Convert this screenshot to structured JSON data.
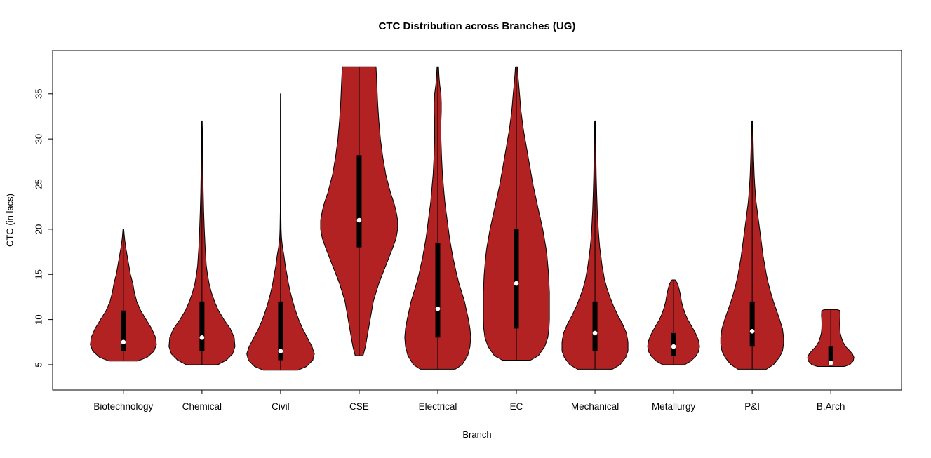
{
  "window": {
    "background": "#ffffff"
  },
  "chart_data": {
    "type": "violin",
    "title": "CTC Distribution across Branches (UG)",
    "xlabel": "Branch",
    "ylabel": "CTC (in lacs)",
    "ylim": [
      2.2,
      39.8
    ],
    "yticks": [
      5,
      10,
      15,
      20,
      25,
      30,
      35
    ],
    "grid": false,
    "legend": false,
    "violin_fill": "#b22222",
    "violin_stroke": "#000000",
    "box_color": "#000000",
    "median_dot_color": "#ffffff",
    "categories": [
      "Biotechnology",
      "Chemical",
      "Civil",
      "CSE",
      "Electrical",
      "EC",
      "Mechanical",
      "Metallurgy",
      "P&I",
      "B.Arch"
    ],
    "series": [
      {
        "name": "Biotechnology",
        "min": 5.4,
        "max": 20,
        "q1": 6.5,
        "q3": 11,
        "median": 7.5,
        "profile": [
          [
            5.4,
            0.18
          ],
          [
            5.8,
            0.3
          ],
          [
            6.5,
            0.39
          ],
          [
            7.2,
            0.42
          ],
          [
            8,
            0.41
          ],
          [
            9,
            0.36
          ],
          [
            10,
            0.29
          ],
          [
            11,
            0.22
          ],
          [
            12,
            0.17
          ],
          [
            13,
            0.14
          ],
          [
            14,
            0.12
          ],
          [
            15,
            0.09
          ],
          [
            16,
            0.07
          ],
          [
            17,
            0.05
          ],
          [
            18,
            0.03
          ],
          [
            19,
            0.015
          ],
          [
            20,
            0.005
          ]
        ]
      },
      {
        "name": "Chemical",
        "min": 5.0,
        "max": 32,
        "q1": 6.5,
        "q3": 12,
        "median": 8,
        "profile": [
          [
            5.0,
            0.2
          ],
          [
            5.5,
            0.31
          ],
          [
            6.2,
            0.39
          ],
          [
            7,
            0.42
          ],
          [
            8,
            0.41
          ],
          [
            9,
            0.36
          ],
          [
            10,
            0.28
          ],
          [
            11,
            0.21
          ],
          [
            12,
            0.16
          ],
          [
            13,
            0.12
          ],
          [
            14,
            0.09
          ],
          [
            15,
            0.07
          ],
          [
            16,
            0.055
          ],
          [
            18,
            0.04
          ],
          [
            20,
            0.03
          ],
          [
            22,
            0.022
          ],
          [
            24,
            0.016
          ],
          [
            26,
            0.012
          ],
          [
            28,
            0.009
          ],
          [
            30,
            0.007
          ],
          [
            31,
            0.006
          ],
          [
            32,
            0.003
          ]
        ]
      },
      {
        "name": "Civil",
        "min": 4.4,
        "max": 35,
        "q1": 5.5,
        "q3": 12,
        "median": 6.5,
        "profile": [
          [
            4.4,
            0.22
          ],
          [
            4.8,
            0.33
          ],
          [
            5.5,
            0.41
          ],
          [
            6.2,
            0.43
          ],
          [
            7,
            0.4
          ],
          [
            8,
            0.34
          ],
          [
            9,
            0.28
          ],
          [
            10,
            0.23
          ],
          [
            11,
            0.19
          ],
          [
            12,
            0.155
          ],
          [
            13,
            0.125
          ],
          [
            14,
            0.1
          ],
          [
            15,
            0.08
          ],
          [
            16,
            0.06
          ],
          [
            17,
            0.045
          ],
          [
            18,
            0.025
          ],
          [
            19,
            0.012
          ],
          [
            20,
            0.007
          ],
          [
            22,
            0.004
          ],
          [
            26,
            0.003
          ],
          [
            30,
            0.003
          ],
          [
            33,
            0.003
          ],
          [
            35,
            0.002
          ]
        ]
      },
      {
        "name": "CSE",
        "min": 6,
        "max": 38,
        "q1": 18,
        "q3": 28.2,
        "median": 21,
        "profile": [
          [
            6,
            0.05
          ],
          [
            7,
            0.08
          ],
          [
            8,
            0.1
          ],
          [
            10,
            0.14
          ],
          [
            12,
            0.18
          ],
          [
            14,
            0.25
          ],
          [
            16,
            0.34
          ],
          [
            18,
            0.43
          ],
          [
            19,
            0.47
          ],
          [
            20,
            0.49
          ],
          [
            21,
            0.49
          ],
          [
            22,
            0.47
          ],
          [
            23,
            0.44
          ],
          [
            24,
            0.4
          ],
          [
            25,
            0.37
          ],
          [
            26,
            0.34
          ],
          [
            28,
            0.3
          ],
          [
            30,
            0.27
          ],
          [
            32,
            0.25
          ],
          [
            34,
            0.235
          ],
          [
            36,
            0.225
          ],
          [
            38,
            0.215
          ]
        ]
      },
      {
        "name": "Electrical",
        "min": 4.5,
        "max": 38,
        "q1": 8,
        "q3": 18.5,
        "median": 11.2,
        "profile": [
          [
            4.5,
            0.22
          ],
          [
            5,
            0.31
          ],
          [
            6,
            0.38
          ],
          [
            7,
            0.41
          ],
          [
            8,
            0.42
          ],
          [
            9,
            0.41
          ],
          [
            10,
            0.39
          ],
          [
            11,
            0.365
          ],
          [
            12,
            0.34
          ],
          [
            13,
            0.305
          ],
          [
            14,
            0.27
          ],
          [
            15,
            0.24
          ],
          [
            16,
            0.215
          ],
          [
            17,
            0.19
          ],
          [
            18,
            0.17
          ],
          [
            19,
            0.15
          ],
          [
            20,
            0.135
          ],
          [
            21,
            0.12
          ],
          [
            22,
            0.105
          ],
          [
            23,
            0.09
          ],
          [
            24,
            0.08
          ],
          [
            25,
            0.07
          ],
          [
            26,
            0.06
          ],
          [
            28,
            0.048
          ],
          [
            30,
            0.04
          ],
          [
            32,
            0.04
          ],
          [
            33,
            0.045
          ],
          [
            34,
            0.045
          ],
          [
            35,
            0.04
          ],
          [
            36,
            0.025
          ],
          [
            37,
            0.015
          ],
          [
            38,
            0.01
          ]
        ]
      },
      {
        "name": "EC",
        "min": 5.5,
        "max": 38,
        "q1": 9,
        "q3": 20,
        "median": 14,
        "profile": [
          [
            5.5,
            0.18
          ],
          [
            6,
            0.28
          ],
          [
            7,
            0.36
          ],
          [
            8,
            0.4
          ],
          [
            9,
            0.415
          ],
          [
            10,
            0.42
          ],
          [
            11,
            0.42
          ],
          [
            12,
            0.42
          ],
          [
            13,
            0.42
          ],
          [
            14,
            0.415
          ],
          [
            15,
            0.41
          ],
          [
            16,
            0.4
          ],
          [
            17,
            0.39
          ],
          [
            18,
            0.375
          ],
          [
            19,
            0.355
          ],
          [
            20,
            0.335
          ],
          [
            21,
            0.31
          ],
          [
            22,
            0.285
          ],
          [
            23,
            0.26
          ],
          [
            24,
            0.235
          ],
          [
            25,
            0.21
          ],
          [
            26,
            0.19
          ],
          [
            27,
            0.17
          ],
          [
            28,
            0.15
          ],
          [
            29,
            0.13
          ],
          [
            30,
            0.11
          ],
          [
            31,
            0.09
          ],
          [
            32,
            0.075
          ],
          [
            33,
            0.06
          ],
          [
            34,
            0.05
          ],
          [
            35,
            0.04
          ],
          [
            36,
            0.03
          ],
          [
            37,
            0.02
          ],
          [
            38,
            0.012
          ]
        ]
      },
      {
        "name": "Mechanical",
        "min": 4.5,
        "max": 32,
        "q1": 6.5,
        "q3": 12,
        "median": 8.5,
        "profile": [
          [
            4.5,
            0.22
          ],
          [
            5,
            0.32
          ],
          [
            5.8,
            0.39
          ],
          [
            6.5,
            0.42
          ],
          [
            7.5,
            0.42
          ],
          [
            8.5,
            0.4
          ],
          [
            9.5,
            0.35
          ],
          [
            10.5,
            0.29
          ],
          [
            11.5,
            0.235
          ],
          [
            12.5,
            0.19
          ],
          [
            13.5,
            0.15
          ],
          [
            14.5,
            0.12
          ],
          [
            16,
            0.09
          ],
          [
            17,
            0.075
          ],
          [
            18,
            0.06
          ],
          [
            19,
            0.05
          ],
          [
            20,
            0.042
          ],
          [
            21,
            0.036
          ],
          [
            22,
            0.03
          ],
          [
            24,
            0.022
          ],
          [
            26,
            0.016
          ],
          [
            28,
            0.012
          ],
          [
            30,
            0.009
          ],
          [
            31,
            0.007
          ],
          [
            32,
            0.004
          ]
        ]
      },
      {
        "name": "Metallurgy",
        "min": 5.0,
        "max": 14.4,
        "q1": 6,
        "q3": 8.5,
        "median": 7,
        "profile": [
          [
            5.0,
            0.14
          ],
          [
            5.4,
            0.22
          ],
          [
            5.9,
            0.28
          ],
          [
            6.4,
            0.315
          ],
          [
            7,
            0.33
          ],
          [
            7.6,
            0.32
          ],
          [
            8.2,
            0.295
          ],
          [
            8.8,
            0.26
          ],
          [
            9.4,
            0.22
          ],
          [
            10,
            0.18
          ],
          [
            10.6,
            0.15
          ],
          [
            11.2,
            0.125
          ],
          [
            12,
            0.1
          ],
          [
            12.8,
            0.085
          ],
          [
            13.4,
            0.07
          ],
          [
            14,
            0.05
          ],
          [
            14.4,
            0.02
          ]
        ]
      },
      {
        "name": "P&I",
        "min": 4.5,
        "max": 32,
        "q1": 7,
        "q3": 12,
        "median": 8.7,
        "profile": [
          [
            4.5,
            0.18
          ],
          [
            5,
            0.27
          ],
          [
            5.8,
            0.345
          ],
          [
            6.5,
            0.385
          ],
          [
            7.3,
            0.4
          ],
          [
            8,
            0.4
          ],
          [
            9,
            0.385
          ],
          [
            10,
            0.35
          ],
          [
            11,
            0.31
          ],
          [
            12,
            0.27
          ],
          [
            13,
            0.235
          ],
          [
            14,
            0.205
          ],
          [
            15,
            0.18
          ],
          [
            16,
            0.16
          ],
          [
            17,
            0.14
          ],
          [
            18,
            0.125
          ],
          [
            19,
            0.11
          ],
          [
            20,
            0.095
          ],
          [
            21,
            0.08
          ],
          [
            22,
            0.065
          ],
          [
            23,
            0.05
          ],
          [
            24,
            0.04
          ],
          [
            25,
            0.032
          ],
          [
            26,
            0.026
          ],
          [
            28,
            0.018
          ],
          [
            30,
            0.012
          ],
          [
            31,
            0.009
          ],
          [
            32,
            0.005
          ]
        ]
      },
      {
        "name": "B.Arch",
        "min": 4.8,
        "max": 11.1,
        "q1": 5,
        "q3": 7,
        "median": 5.2,
        "profile": [
          [
            4.8,
            0.17
          ],
          [
            5,
            0.24
          ],
          [
            5.4,
            0.285
          ],
          [
            5.8,
            0.295
          ],
          [
            6.2,
            0.275
          ],
          [
            6.6,
            0.235
          ],
          [
            7,
            0.19
          ],
          [
            7.5,
            0.155
          ],
          [
            8,
            0.135
          ],
          [
            8.5,
            0.12
          ],
          [
            9,
            0.115
          ],
          [
            9.5,
            0.113
          ],
          [
            10,
            0.115
          ],
          [
            10.5,
            0.118
          ],
          [
            11,
            0.115
          ],
          [
            11.1,
            0.08
          ]
        ]
      }
    ]
  }
}
